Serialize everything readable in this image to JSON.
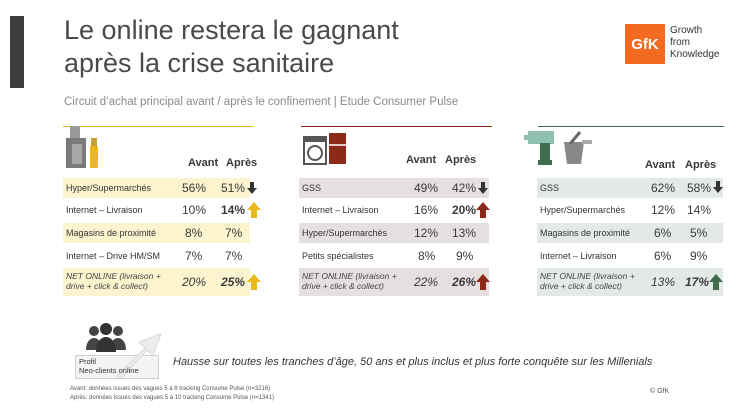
{
  "title_line1": "Le online restera le gagnant",
  "title_line2": "après la crise sanitaire",
  "logo": {
    "mark": "GfK",
    "line1": "Growth",
    "line2": "from",
    "line3": "Knowledge"
  },
  "subtitle": "Circuit d’achat principal avant / après le confinement | Etude Consumer Pulse",
  "headers": {
    "avant": "Avant",
    "apres": "Après"
  },
  "colors": {
    "yellow": "#fcf3cf",
    "red": "#e6dfdf",
    "green": "#e3e9e4",
    "arrow_yellow": "#e8b81c",
    "arrow_red": "#8b2a16",
    "arrow_green": "#3f6d4e",
    "arrow_dark": "#333333"
  },
  "panels": [
    {
      "icon": "cosmetics-icon",
      "rows": [
        {
          "label": "Hyper/Supermarchés",
          "avant": "56%",
          "apres": "51%",
          "arrow": "down"
        },
        {
          "label": "Internet – Livraison",
          "avant": "10%",
          "apres": "14%",
          "arrow": "up"
        },
        {
          "label": "Magasins de proximité",
          "avant": "8%",
          "apres": "7%",
          "arrow": ""
        },
        {
          "label": "Internet – Drive HM/SM",
          "avant": "7%",
          "apres": "7%",
          "arrow": ""
        }
      ],
      "net": {
        "label1": "NET ONLINE (livraison +",
        "label2": "drive + click & collect)",
        "avant": "20%",
        "apres": "25%",
        "arrow": "up"
      }
    },
    {
      "icon": "appliances-icon",
      "rows": [
        {
          "label": "GSS",
          "avant": "49%",
          "apres": "42%",
          "arrow": "down"
        },
        {
          "label": "Internet – Livraison",
          "avant": "16%",
          "apres": "20%",
          "arrow": "up"
        },
        {
          "label": "Hyper/Supermarchés",
          "avant": "12%",
          "apres": "13%",
          "arrow": ""
        },
        {
          "label": "Petits spécialistes",
          "avant": "8%",
          "apres": "9%",
          "arrow": ""
        }
      ],
      "net": {
        "label1": "NET ONLINE (livraison +",
        "label2": "drive + click & collect)",
        "avant": "22%",
        "apres": "26%",
        "arrow": "up"
      }
    },
    {
      "icon": "diy-tools-icon",
      "rows": [
        {
          "label": "GSS",
          "avant": "62%",
          "apres": "58%",
          "arrow": "down"
        },
        {
          "label": "Hyper/Supermarchés",
          "avant": "12%",
          "apres": "14%",
          "arrow": ""
        },
        {
          "label": "Magasins de proximité",
          "avant": "6%",
          "apres": "5%",
          "arrow": ""
        },
        {
          "label": "Internet – Livraison",
          "avant": "6%",
          "apres": "9%",
          "arrow": ""
        }
      ],
      "net": {
        "label1": "NET ONLINE (livraison +",
        "label2": "drive + click & collect)",
        "avant": "13%",
        "apres": "17%",
        "arrow": "up"
      }
    }
  ],
  "profil": {
    "line1": "Profil",
    "line2": "Neo-clients online"
  },
  "footer_text": "Hausse sur toutes les tranches d’âge, 50 ans et plus inclus et plus forte conquête sur les Millenials",
  "footnote1": "Avant: données issues des vagues 5 à 8 tracking Consume Pulse (n=3216)",
  "footnote2": "Après: données issues des vagues 5 à 10 tracking Consume Pulse (n=1341)",
  "copyright": "© GfK"
}
